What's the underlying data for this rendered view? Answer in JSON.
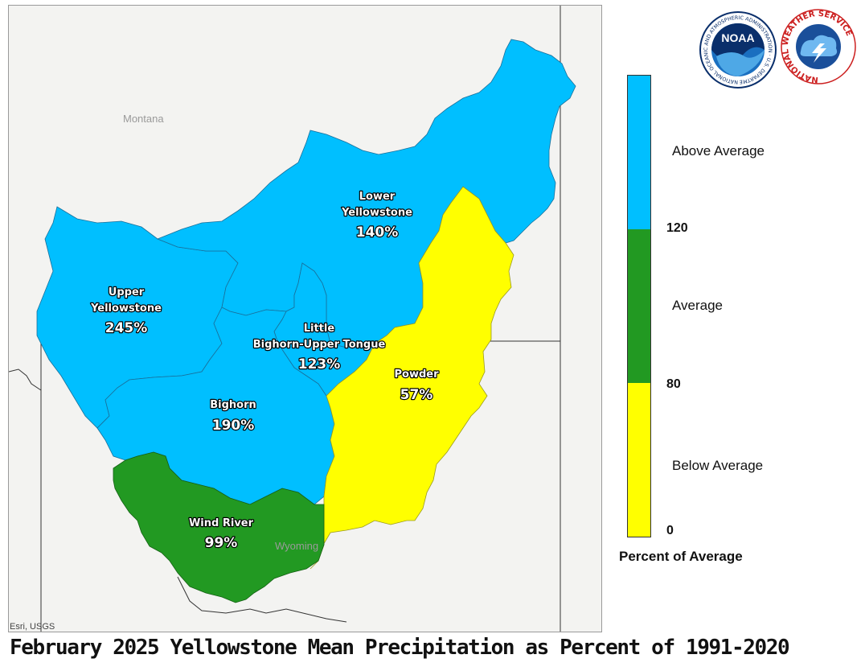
{
  "title": "February 2025 Yellowstone Mean Precipitation as Percent of 1991-2020",
  "attribution": "Esri, USGS",
  "states": {
    "montana": "Montana",
    "wyoming": "Wyoming"
  },
  "basins": [
    {
      "name_lines": [
        "Lower",
        "Yellowstone"
      ],
      "percent": "140%",
      "category": "Above Average"
    },
    {
      "name_lines": [
        "Upper",
        "Yellowstone"
      ],
      "percent": "245%",
      "category": "Above Average"
    },
    {
      "name_lines": [
        "Little",
        "Bighorn-Upper Tongue"
      ],
      "percent": "123%",
      "category": "Above Average"
    },
    {
      "name_lines": [
        "Powder"
      ],
      "percent": "57%",
      "category": "Below Average"
    },
    {
      "name_lines": [
        "Bighorn"
      ],
      "percent": "190%",
      "category": "Above Average"
    },
    {
      "name_lines": [
        "Wind River"
      ],
      "percent": "99%",
      "category": "Average"
    }
  ],
  "legend": {
    "title": "Percent of Average",
    "categories": [
      {
        "label": "Above Average",
        "color": "#00BFFF"
      },
      {
        "label": "Average",
        "color": "#229922"
      },
      {
        "label": "Below Average",
        "color": "#FFFF00"
      }
    ],
    "breaks": [
      "120",
      "80",
      "0"
    ]
  },
  "logos": {
    "noaa": {
      "text": "NOAA",
      "ring_text": "NATIONAL OCEANIC AND ATMOSPHERIC ADMINISTRATION · U.S. DEPARTMENT OF COMMERCE"
    },
    "nws": {
      "ring_text": "NATIONAL WEATHER SERVICE"
    }
  },
  "colors": {
    "above": "#00BFFF",
    "average": "#229922",
    "below": "#FFFF00"
  }
}
